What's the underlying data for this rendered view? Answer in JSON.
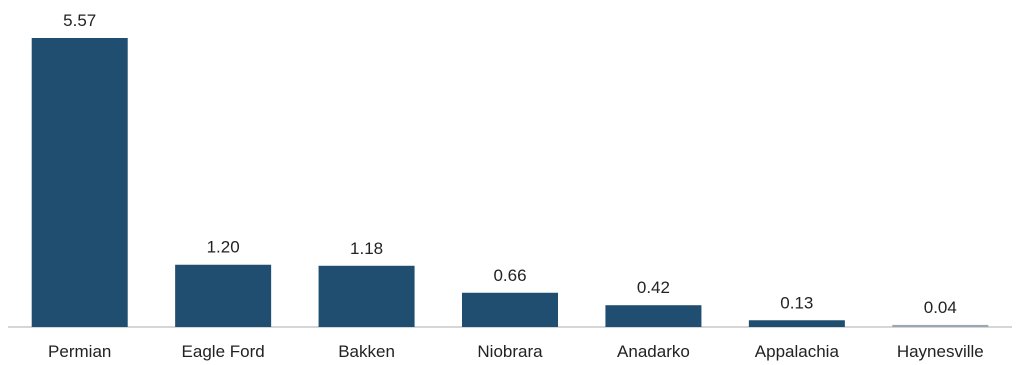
{
  "chart_data": {
    "type": "bar",
    "categories": [
      "Permian",
      "Eagle Ford",
      "Bakken",
      "Niobrara",
      "Anadarko",
      "Appalachia",
      "Haynesville"
    ],
    "values": [
      5.57,
      1.2,
      1.18,
      0.66,
      0.42,
      0.13,
      0.04
    ],
    "value_labels": [
      "5.57",
      "1.20",
      "1.18",
      "0.66",
      "0.42",
      "0.13",
      "0.04"
    ],
    "title": "",
    "xlabel": "",
    "ylabel": "",
    "ylim": [
      0,
      5.57
    ],
    "grid": false,
    "legend": "none",
    "colors": {
      "bar": "#1f4e70",
      "last_bar": "#9aa6b2",
      "axis": "#c8c8c8"
    }
  }
}
